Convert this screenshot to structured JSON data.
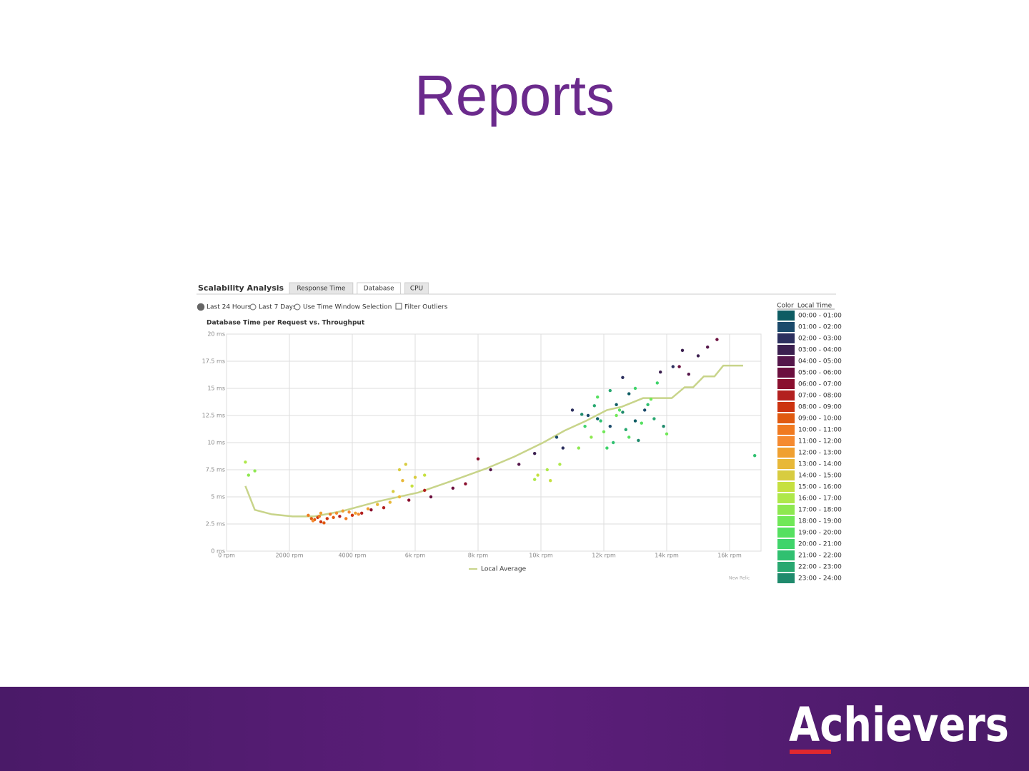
{
  "title": "Reports",
  "panel": {
    "title": "Scalability Analysis",
    "tabs": [
      "Response Time",
      "Database",
      "CPU"
    ],
    "active_tab": 1,
    "options": [
      "Last 24 Hours",
      "Last 7 Days",
      "Use Time Window Selection",
      "Filter Outliers"
    ],
    "watermark": "New Relic"
  },
  "brand": "Achievers",
  "chart_data": {
    "type": "scatter",
    "title": "Database Time per Request vs. Throughput",
    "xlim": [
      0,
      17000
    ],
    "ylim": [
      0,
      20
    ],
    "grid": true,
    "xticks": [
      {
        "value": 0,
        "label": "0 rpm"
      },
      {
        "value": 2000,
        "label": "2000 rpm"
      },
      {
        "value": 4000,
        "label": "4000 rpm"
      },
      {
        "value": 6000,
        "label": "6k rpm"
      },
      {
        "value": 8000,
        "label": "8k rpm"
      },
      {
        "value": 10000,
        "label": "10k rpm"
      },
      {
        "value": 12000,
        "label": "12k rpm"
      },
      {
        "value": 14000,
        "label": "14k rpm"
      },
      {
        "value": 16000,
        "label": "16k rpm"
      }
    ],
    "yticks": [
      {
        "value": 0,
        "label": "0 ms"
      },
      {
        "value": 2.5,
        "label": "2.5 ms"
      },
      {
        "value": 5,
        "label": "5 ms"
      },
      {
        "value": 7.5,
        "label": "7.5 ms"
      },
      {
        "value": 10,
        "label": "10 ms"
      },
      {
        "value": 12.5,
        "label": "12.5 ms"
      },
      {
        "value": 15,
        "label": "15 ms"
      },
      {
        "value": 17.5,
        "label": "17.5 ms"
      },
      {
        "value": 20,
        "label": "20 ms"
      }
    ],
    "legend_header": [
      "Color",
      "Local Time"
    ],
    "local_average": {
      "name": "Local Average",
      "color": "#c8d48a",
      "x": [
        600,
        900,
        1430,
        2100,
        2800,
        3700,
        4850,
        6100,
        7100,
        8250,
        9150,
        10070,
        10750,
        11430,
        12100,
        12570,
        13250,
        14160,
        14570,
        14840,
        15180,
        15520,
        15800,
        16430
      ],
      "values": [
        6,
        3.8,
        3.4,
        3.2,
        3.2,
        3.7,
        4.6,
        5.4,
        6.4,
        7.6,
        8.7,
        10,
        11.1,
        12,
        13,
        13.3,
        14.1,
        14.1,
        15.1,
        15.1,
        16.1,
        16.1,
        17.1,
        17.1
      ]
    },
    "series": [
      {
        "name": "00:00 - 01:00",
        "color": "#0d5c63",
        "x": [
          12400,
          13000,
          12800,
          11800
        ],
        "values": [
          13.5,
          12,
          14.5,
          12.2
        ]
      },
      {
        "name": "01:00 - 02:00",
        "color": "#1b4a6b",
        "x": [
          11500,
          12200,
          13300,
          10500
        ],
        "values": [
          12.5,
          11.5,
          13,
          10.5
        ]
      },
      {
        "name": "02:00 - 03:00",
        "color": "#2c2f5e",
        "x": [
          11000,
          12600,
          14200,
          10700
        ],
        "values": [
          13,
          16,
          17,
          9.5
        ]
      },
      {
        "name": "03:00 - 04:00",
        "color": "#3b1f4f",
        "x": [
          14500,
          15000,
          13800,
          9800
        ],
        "values": [
          18.5,
          18,
          16.5,
          9
        ]
      },
      {
        "name": "04:00 - 05:00",
        "color": "#55164a",
        "x": [
          15300,
          14700,
          9300,
          8400
        ],
        "values": [
          18.8,
          16.3,
          8,
          7.5
        ]
      },
      {
        "name": "05:00 - 06:00",
        "color": "#6b0f3e",
        "x": [
          15600,
          14400,
          7200,
          6500
        ],
        "values": [
          19.5,
          17,
          5.8,
          5
        ]
      },
      {
        "name": "06:00 - 07:00",
        "color": "#8a0f2e",
        "x": [
          7600,
          5800,
          4600,
          8000
        ],
        "values": [
          6.2,
          4.7,
          3.8,
          8.5
        ]
      },
      {
        "name": "07:00 - 08:00",
        "color": "#b3201f",
        "x": [
          5000,
          4300,
          3600,
          6300
        ],
        "values": [
          4,
          3.5,
          3.2,
          5.6
        ]
      },
      {
        "name": "08:00 - 09:00",
        "color": "#cc3310",
        "x": [
          3000,
          3200,
          4000,
          2900
        ],
        "values": [
          2.7,
          3,
          3.3,
          3.1
        ]
      },
      {
        "name": "09:00 - 10:00",
        "color": "#e05a10",
        "x": [
          2800,
          3100,
          3400,
          2700
        ],
        "values": [
          2.9,
          2.6,
          3.1,
          3
        ]
      },
      {
        "name": "10:00 - 11:00",
        "color": "#f07a20",
        "x": [
          2600,
          3300,
          3800,
          2950
        ],
        "values": [
          3.3,
          3.4,
          3,
          3.2
        ]
      },
      {
        "name": "11:00 - 12:00",
        "color": "#f58a30",
        "x": [
          3500,
          2750,
          3900,
          4200
        ],
        "values": [
          3.5,
          2.8,
          3.6,
          3.4
        ]
      },
      {
        "name": "12:00 - 13:00",
        "color": "#f0a030",
        "x": [
          3700,
          4100,
          3000,
          4500
        ],
        "values": [
          3.7,
          3.5,
          3.5,
          3.9
        ]
      },
      {
        "name": "13:00 - 14:00",
        "color": "#e8b838",
        "x": [
          5200,
          5500,
          4800,
          5600
        ],
        "values": [
          4.5,
          5,
          4.3,
          6.5
        ]
      },
      {
        "name": "14:00 - 15:00",
        "color": "#d8cc40",
        "x": [
          5500,
          5700,
          6000,
          5300
        ],
        "values": [
          7.5,
          8,
          6.8,
          5.5
        ]
      },
      {
        "name": "15:00 - 16:00",
        "color": "#c6e040",
        "x": [
          6300,
          9900,
          10300,
          5900
        ],
        "values": [
          7,
          7,
          6.5,
          6
        ]
      },
      {
        "name": "16:00 - 17:00",
        "color": "#aee84a",
        "x": [
          10200,
          10600,
          9800,
          600
        ],
        "values": [
          7.5,
          8,
          6.6,
          8.2
        ]
      },
      {
        "name": "17:00 - 18:00",
        "color": "#8ee850",
        "x": [
          900,
          700,
          11200,
          11600
        ],
        "values": [
          7.4,
          7,
          9.5,
          10.5
        ]
      },
      {
        "name": "18:00 - 19:00",
        "color": "#70e858",
        "x": [
          12000,
          12400,
          13500,
          14000
        ],
        "values": [
          11,
          12.5,
          14,
          10.8
        ]
      },
      {
        "name": "19:00 - 20:00",
        "color": "#55e060",
        "x": [
          12800,
          13200,
          11800,
          12500
        ],
        "values": [
          10.5,
          11.8,
          14.2,
          13
        ]
      },
      {
        "name": "20:00 - 21:00",
        "color": "#3fd46a",
        "x": [
          13700,
          12100,
          11400,
          13000
        ],
        "values": [
          15.5,
          9.5,
          11.5,
          15
        ]
      },
      {
        "name": "21:00 - 22:00",
        "color": "#30c070",
        "x": [
          12300,
          13400,
          11900,
          16800
        ],
        "values": [
          10,
          13.5,
          12,
          8.8
        ]
      },
      {
        "name": "22:00 - 23:00",
        "color": "#28a870",
        "x": [
          12700,
          13600,
          12200,
          11700
        ],
        "values": [
          11.2,
          12.2,
          14.8,
          13.4
        ]
      },
      {
        "name": "23:00 - 24:00",
        "color": "#1f8a6c",
        "x": [
          13100,
          12600,
          11300,
          13900
        ],
        "values": [
          10.2,
          12.8,
          12.6,
          11.5
        ]
      }
    ]
  }
}
